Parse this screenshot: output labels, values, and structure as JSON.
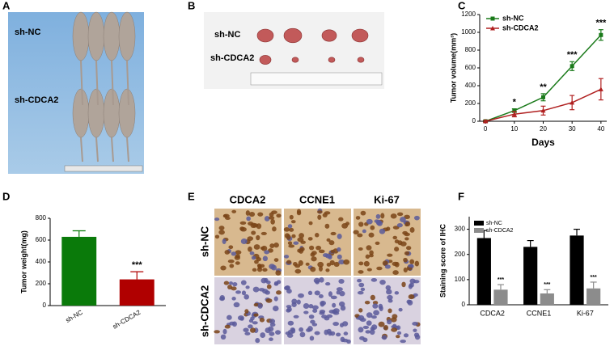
{
  "panel_labels": [
    "A",
    "B",
    "C",
    "D",
    "E",
    "F"
  ],
  "mice": {
    "groups": [
      "sh-NC",
      "sh-CDCA2"
    ]
  },
  "tumors": {
    "groups": [
      "sh-NC",
      "sh-CDCA2"
    ]
  },
  "ihc": {
    "columns": [
      "CDCA2",
      "CCNE1",
      "Ki-67"
    ],
    "rows": [
      "sh-NC",
      "sh-CDCA2"
    ]
  },
  "chart_data": [
    {
      "type": "line",
      "x_label": "Days",
      "y_label": "Tumor volume(mm³)",
      "x": [
        0,
        10,
        20,
        30,
        40
      ],
      "xlim": [
        -2,
        42
      ],
      "xticks": [
        0,
        10,
        20,
        30,
        40
      ],
      "ylim": [
        0,
        1200
      ],
      "yticks": [
        0,
        200,
        400,
        600,
        800,
        1000,
        1200
      ],
      "legend": "upper left",
      "series": [
        {
          "name": "sh-NC",
          "color": "#1a7a1a",
          "marker": "square",
          "values": [
            0,
            120,
            270,
            620,
            970
          ],
          "errors": [
            10,
            20,
            40,
            50,
            60
          ],
          "annotations": [
            null,
            "*",
            "**",
            "***",
            "***"
          ]
        },
        {
          "name": "sh-CDCA2",
          "color": "#b02020",
          "marker": "triangle",
          "values": [
            0,
            80,
            120,
            210,
            360
          ],
          "errors": [
            10,
            30,
            50,
            80,
            120
          ],
          "annotations": [
            null,
            null,
            null,
            null,
            null
          ]
        }
      ]
    },
    {
      "type": "bar",
      "y_label": "Tumor weight(mg)",
      "categories": [
        "sh-NC",
        "sh-CDCA2"
      ],
      "values": [
        630,
        240
      ],
      "errors": [
        55,
        70
      ],
      "colors": [
        "#0a7a0a",
        "#b00000"
      ],
      "annotations": [
        null,
        "***"
      ],
      "ylim": [
        0,
        800
      ],
      "yticks": [
        0,
        200,
        400,
        600,
        800
      ]
    },
    {
      "type": "bar",
      "y_label": "Staining score of IHC",
      "categories": [
        "CDCA2",
        "CCNE1",
        "Ki-67"
      ],
      "legend": "upper left",
      "series": [
        {
          "name": "sh-NC",
          "color": "#000000",
          "values": [
            265,
            230,
            275
          ],
          "errors": [
            30,
            25,
            25
          ],
          "annotations": [
            null,
            null,
            null
          ]
        },
        {
          "name": "sh-CDCA2",
          "color": "#8c8c8c",
          "values": [
            60,
            45,
            65
          ],
          "errors": [
            20,
            15,
            25
          ],
          "annotations": [
            "***",
            "***",
            "***"
          ]
        }
      ],
      "ylim": [
        0,
        350
      ],
      "yticks": [
        0,
        100,
        200,
        300
      ]
    }
  ]
}
